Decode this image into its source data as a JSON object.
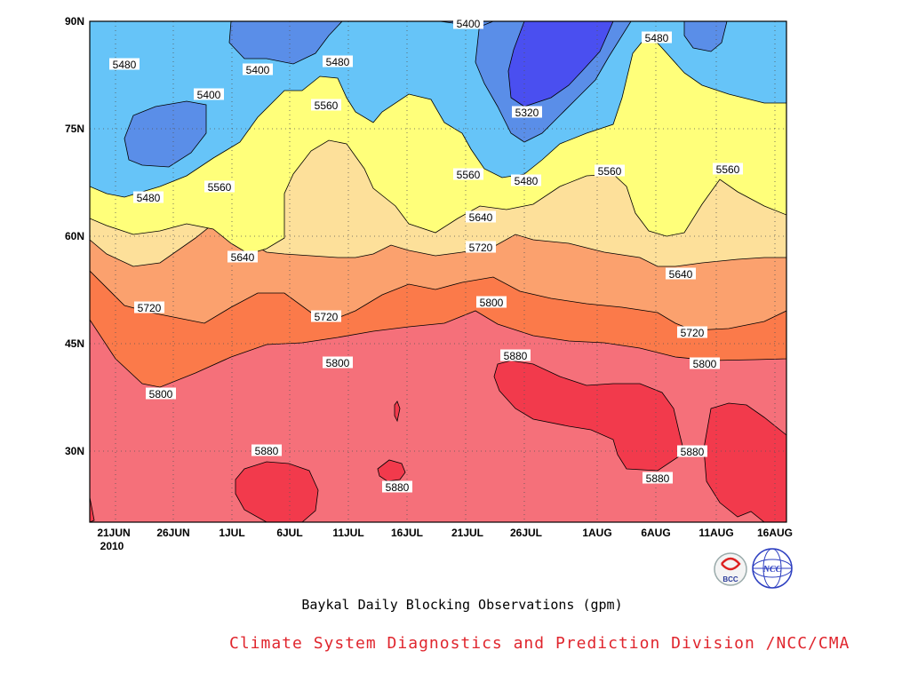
{
  "chart_data": {
    "type": "contour",
    "title": "Baykal Daily Blocking Observations (gpm)",
    "credit": "Climate System Diagnostics and Prediction Division /NCC/CMA",
    "y_ticks": [
      "90N",
      "75N",
      "60N",
      "45N",
      "30N"
    ],
    "x_ticks": [
      "21JUN",
      "26JUN",
      "1JUL",
      "6JUL",
      "11JUL",
      "16JUL",
      "21JUL",
      "26JUL",
      "1AUG",
      "6AUG",
      "11AUG",
      "16AUG"
    ],
    "x_year": "2010",
    "contour_levels": [
      5320,
      5400,
      5480,
      5560,
      5640,
      5720,
      5800,
      5880
    ],
    "level_colors": {
      "below_5320": "#4a4ff0",
      "5320_5400": "#5a8ee8",
      "5400_5480": "#66c4f8",
      "5480_5560": "#ffff7a",
      "5560_5640": "#fde09a",
      "5640_5720": "#fba16e",
      "5720_5800": "#fb7a4a",
      "5800_5880": "#f5707a",
      "above_5880": "#f23a4c"
    },
    "contour_labels": [
      {
        "text": "5400"
      },
      {
        "text": "5480"
      },
      {
        "text": "5400"
      },
      {
        "text": "5480"
      },
      {
        "text": "5480"
      },
      {
        "text": "5400"
      },
      {
        "text": "5560"
      },
      {
        "text": "5320"
      },
      {
        "text": "5480"
      },
      {
        "text": "5560"
      },
      {
        "text": "5560"
      },
      {
        "text": "5560"
      },
      {
        "text": "5480"
      },
      {
        "text": "5560"
      },
      {
        "text": "5640"
      },
      {
        "text": "5720"
      },
      {
        "text": "5640"
      },
      {
        "text": "5640"
      },
      {
        "text": "5720"
      },
      {
        "text": "5720"
      },
      {
        "text": "5800"
      },
      {
        "text": "5720"
      },
      {
        "text": "5800"
      },
      {
        "text": "5800"
      },
      {
        "text": "5880"
      },
      {
        "text": "5800"
      },
      {
        "text": "5880"
      },
      {
        "text": "5880"
      },
      {
        "text": "5880"
      },
      {
        "text": "5880"
      }
    ]
  },
  "logos": {
    "left": "BCC",
    "right": "NCC"
  }
}
